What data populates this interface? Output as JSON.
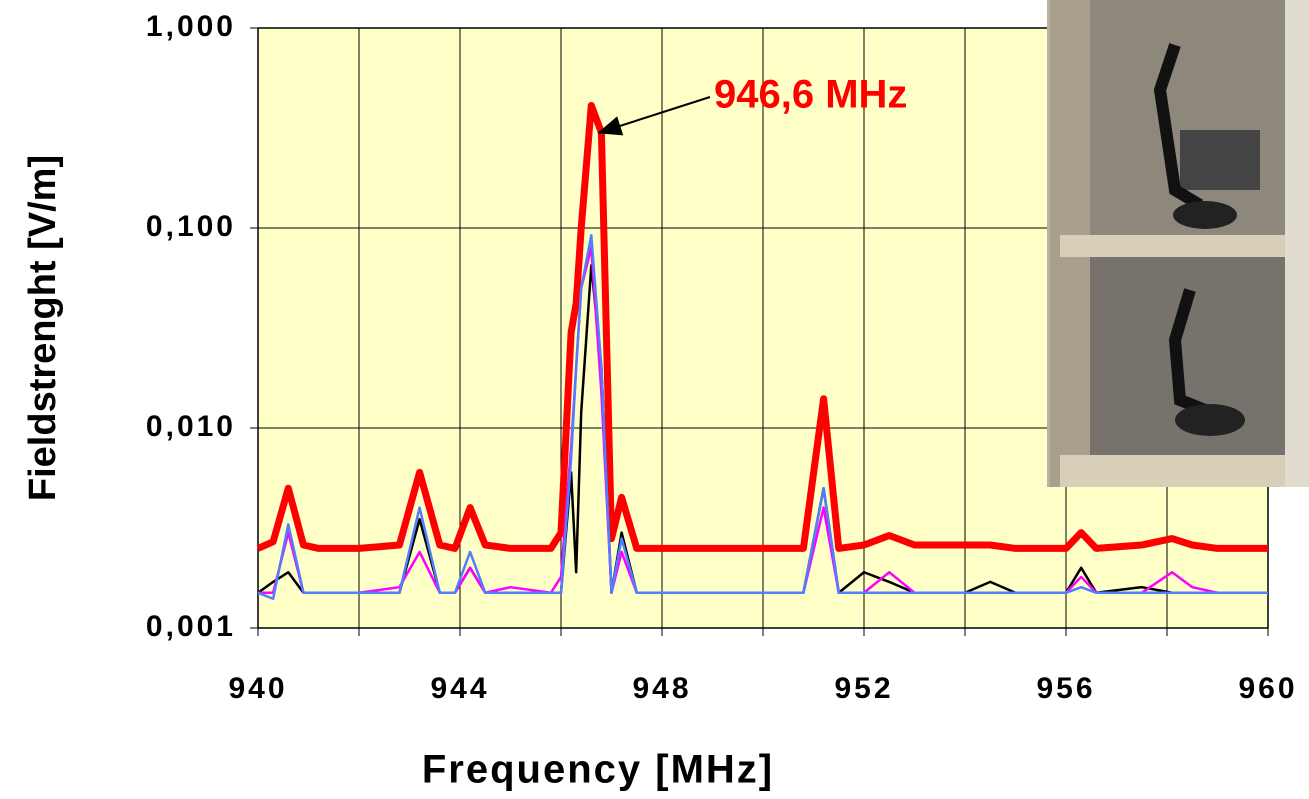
{
  "chart_data": {
    "type": "line",
    "ylog": true,
    "grid": true,
    "plot_background": "#ffffc8",
    "xlabel": "Frequency [MHz]",
    "ylabel": "Fieldstrenght [V/m]",
    "annotation": {
      "text": "946,6 MHz",
      "color": "#ff0000",
      "x": 946.6,
      "y": 0.3
    },
    "xlim": [
      940,
      960
    ],
    "xticks": [
      940,
      944,
      948,
      952,
      956,
      960
    ],
    "xminorticks": [
      942,
      946,
      950,
      954,
      958
    ],
    "ylim": [
      0.001,
      1
    ],
    "yticks": [
      {
        "value": 0.001,
        "label": "0,001"
      },
      {
        "value": 0.01,
        "label": "0,010"
      },
      {
        "value": 0.1,
        "label": "0,100"
      },
      {
        "value": 1,
        "label": "1,000"
      }
    ],
    "x": [
      940,
      940.3,
      940.6,
      940.9,
      941.2,
      942,
      942.8,
      943.2,
      943.6,
      943.9,
      944.2,
      944.5,
      945,
      945.8,
      946,
      946.2,
      946.3,
      946.4,
      946.6,
      946.8,
      947,
      947.2,
      947.5,
      948,
      949,
      950,
      950.8,
      951.2,
      951.5,
      952,
      952.5,
      953,
      954,
      954.5,
      955,
      956,
      956.3,
      956.6,
      957.5,
      958.1,
      958.5,
      959,
      960
    ],
    "series": [
      {
        "color": "#ff0000",
        "width": 7,
        "values": [
          0.0025,
          0.0027,
          0.005,
          0.0026,
          0.0025,
          0.0025,
          0.0026,
          0.006,
          0.0026,
          0.0025,
          0.004,
          0.0026,
          0.0025,
          0.0025,
          0.003,
          0.03,
          0.042,
          0.1,
          0.41,
          0.3,
          0.0028,
          0.0045,
          0.0025,
          0.0025,
          0.0025,
          0.0025,
          0.0025,
          0.014,
          0.0025,
          0.0026,
          0.0029,
          0.0026,
          0.0026,
          0.0026,
          0.0025,
          0.0025,
          0.003,
          0.0025,
          0.0026,
          0.0028,
          0.0026,
          0.0025,
          0.0025
        ]
      },
      {
        "color": "#000000",
        "width": 2.5,
        "values": [
          0.0015,
          0.0017,
          0.0019,
          0.0015,
          0.0015,
          0.0015,
          0.0015,
          0.0035,
          0.0015,
          0.0015,
          0.002,
          0.0015,
          0.0015,
          0.0015,
          0.0015,
          0.006,
          0.0019,
          0.012,
          0.065,
          0.02,
          0.0015,
          0.003,
          0.0015,
          0.0015,
          0.0015,
          0.0015,
          0.0015,
          0.005,
          0.0015,
          0.0019,
          0.0017,
          0.0015,
          0.0015,
          0.0017,
          0.0015,
          0.0015,
          0.002,
          0.0015,
          0.0016,
          0.0015,
          0.0015,
          0.0015,
          0.0015
        ]
      },
      {
        "color": "#ff00ff",
        "width": 2.5,
        "values": [
          0.0015,
          0.0015,
          0.003,
          0.0015,
          0.0015,
          0.0015,
          0.0016,
          0.0024,
          0.0015,
          0.0015,
          0.002,
          0.0015,
          0.0016,
          0.0015,
          0.0018,
          0.008,
          0.02,
          0.05,
          0.08,
          0.015,
          0.0015,
          0.0024,
          0.0015,
          0.0015,
          0.0015,
          0.0015,
          0.0015,
          0.004,
          0.0015,
          0.0015,
          0.0019,
          0.0015,
          0.0015,
          0.0015,
          0.0015,
          0.0015,
          0.0018,
          0.0015,
          0.0015,
          0.0019,
          0.0016,
          0.0015,
          0.0015
        ]
      },
      {
        "color": "#4f7fff",
        "width": 2.5,
        "values": [
          0.0015,
          0.0014,
          0.0033,
          0.0015,
          0.0015,
          0.0015,
          0.0015,
          0.004,
          0.0015,
          0.0015,
          0.0024,
          0.0015,
          0.0015,
          0.0015,
          0.0015,
          0.007,
          0.02,
          0.05,
          0.092,
          0.02,
          0.0015,
          0.0028,
          0.0015,
          0.0015,
          0.0015,
          0.0015,
          0.0015,
          0.005,
          0.0015,
          0.0015,
          0.0015,
          0.0015,
          0.0015,
          0.0015,
          0.0015,
          0.0015,
          0.0016,
          0.0015,
          0.0015,
          0.0015,
          0.0015,
          0.0015,
          0.0015
        ]
      }
    ]
  }
}
